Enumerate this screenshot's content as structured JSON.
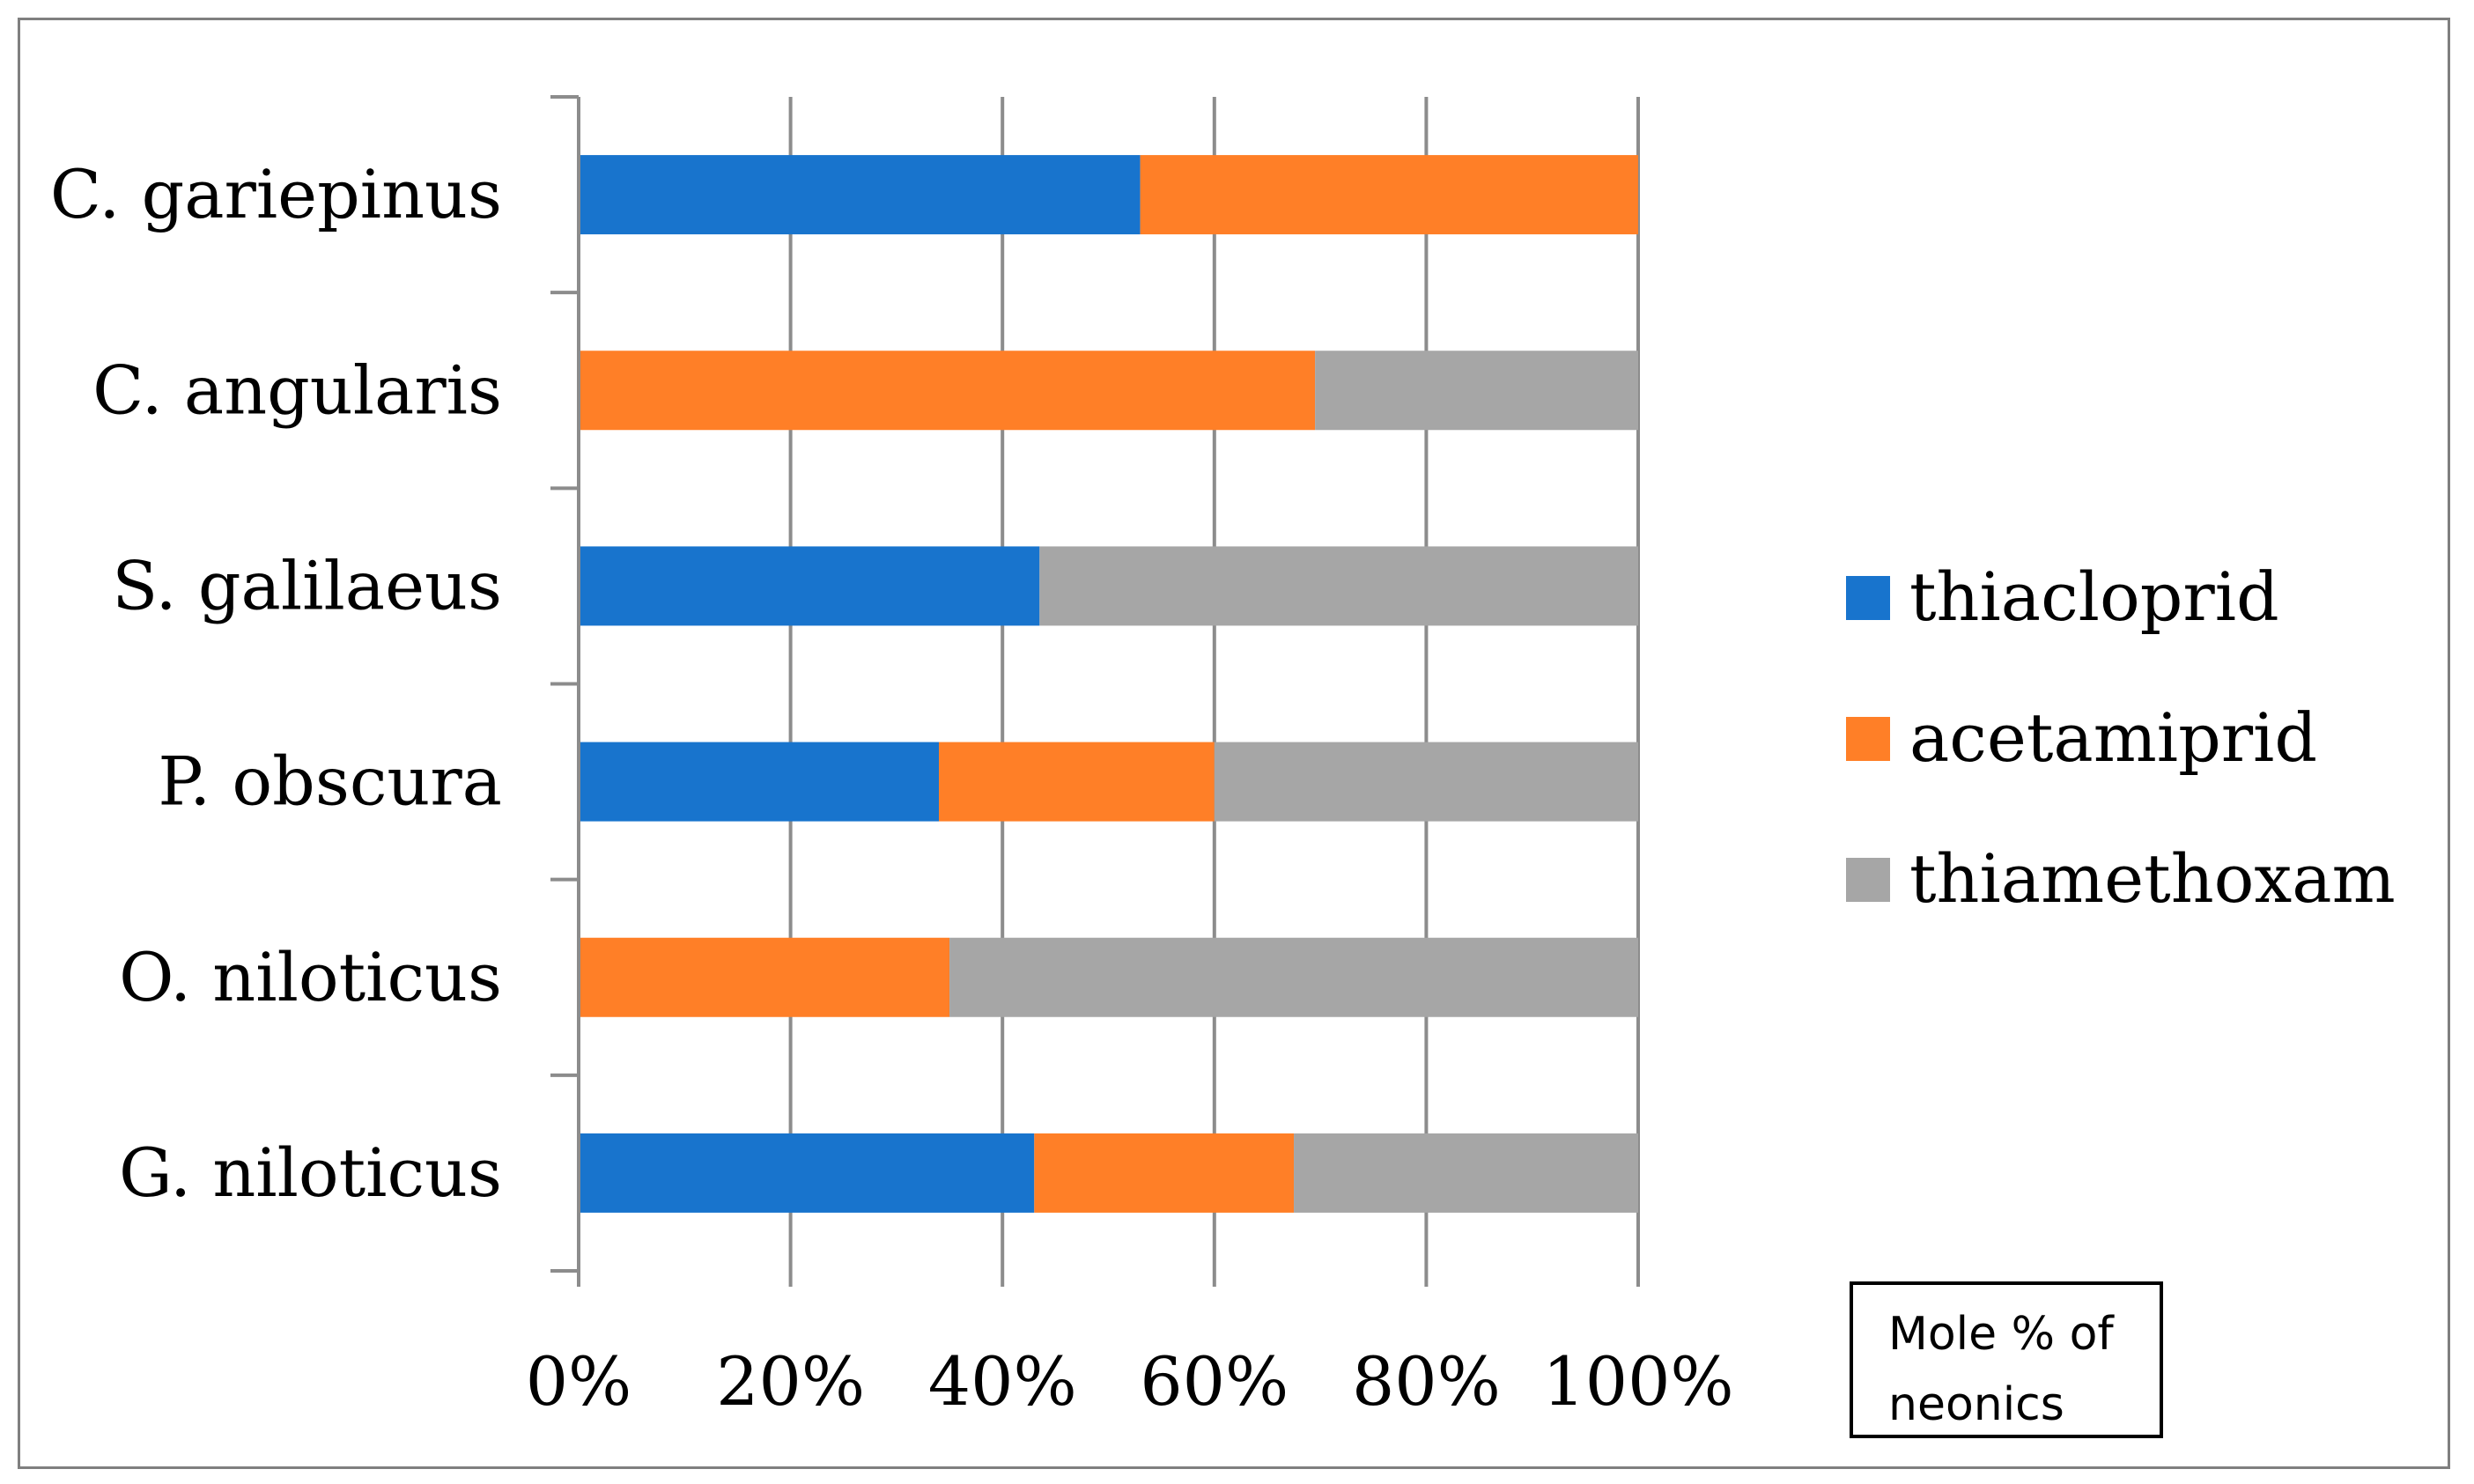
{
  "chart_data": {
    "type": "bar",
    "orientation": "horizontal",
    "stacked": "percent",
    "categories": [
      "C. gariepinus",
      "C. angularis",
      "S. galilaeus",
      "P. obscura",
      "O. niloticus",
      "G. niloticus"
    ],
    "series": [
      {
        "name": "thiacloprid",
        "color": "#1874cd",
        "values": [
          53,
          0,
          43.5,
          34,
          0,
          43
        ]
      },
      {
        "name": "acetamiprid",
        "color": "#ff7f27",
        "values": [
          47,
          69.5,
          0,
          26,
          35,
          24.5
        ]
      },
      {
        "name": "thiamethoxam",
        "color": "#a6a6a6",
        "values": [
          0,
          30.5,
          56.5,
          40,
          65,
          32.5
        ]
      }
    ],
    "xlim": [
      0,
      100
    ],
    "xticks": [
      "0%",
      "20%",
      "40%",
      "60%",
      "80%",
      "100%"
    ],
    "grid": "vertical",
    "legend": "right",
    "annotation": "Mole % of\nneonics"
  }
}
